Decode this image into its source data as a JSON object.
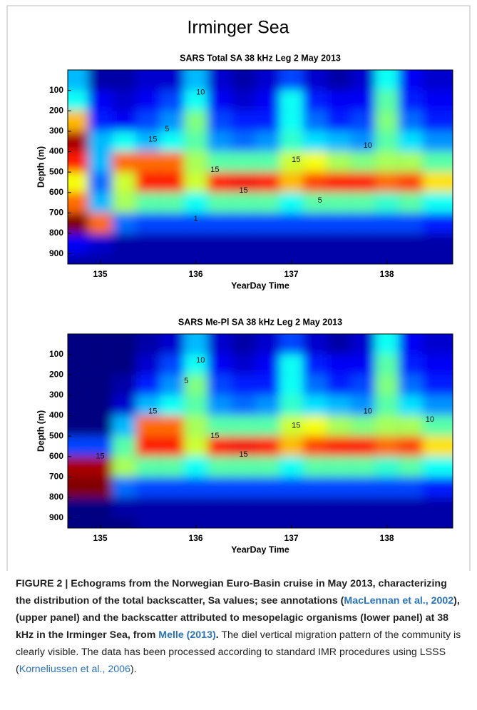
{
  "title": "Irminger Sea",
  "chart_data": [
    {
      "type": "heatmap",
      "title": "SARS Total SA 38 kHz Leg 2 May 2013",
      "xlabel": "YearDay Time",
      "ylabel": "Depth (m)",
      "x": [
        134.75,
        135.0,
        135.25,
        135.5,
        135.75,
        136.0,
        136.25,
        136.5,
        136.75,
        137.0,
        137.25,
        137.5,
        137.75,
        138.0,
        138.25,
        138.5
      ],
      "y": [
        50,
        150,
        250,
        350,
        450,
        550,
        650,
        750,
        850,
        950
      ],
      "values": [
        [
          8,
          1,
          1,
          2,
          2,
          8,
          2,
          1,
          2,
          5,
          2,
          1,
          2,
          10,
          3,
          2
        ],
        [
          10,
          3,
          2,
          3,
          5,
          10,
          3,
          2,
          3,
          10,
          4,
          3,
          3,
          12,
          4,
          3
        ],
        [
          18,
          4,
          3,
          5,
          7,
          13,
          5,
          4,
          4,
          10,
          6,
          4,
          5,
          13,
          6,
          4
        ],
        [
          25,
          8,
          10,
          8,
          10,
          12,
          7,
          6,
          7,
          11,
          9,
          8,
          7,
          12,
          9,
          7
        ],
        [
          22,
          8,
          20,
          20,
          20,
          14,
          12,
          12,
          12,
          15,
          16,
          14,
          13,
          14,
          14,
          12
        ],
        [
          16,
          6,
          15,
          22,
          22,
          15,
          22,
          23,
          22,
          18,
          21,
          22,
          22,
          20,
          21,
          17
        ],
        [
          20,
          8,
          14,
          12,
          12,
          10,
          12,
          12,
          12,
          10,
          12,
          12,
          12,
          11,
          12,
          10
        ],
        [
          26,
          20,
          6,
          5,
          5,
          5,
          5,
          5,
          5,
          5,
          5,
          5,
          5,
          5,
          5,
          4
        ],
        [
          3,
          2,
          1,
          1,
          1,
          1,
          1,
          1,
          1,
          1,
          1,
          1,
          1,
          1,
          1,
          1
        ],
        [
          1,
          1,
          1,
          1,
          1,
          1,
          1,
          1,
          1,
          1,
          1,
          1,
          1,
          1,
          1,
          1
        ]
      ],
      "xlim": [
        134.66,
        138.69
      ],
      "ylim": [
        950,
        0
      ],
      "xticks": [
        135,
        136,
        137,
        138
      ],
      "yticks": [
        100,
        200,
        300,
        400,
        500,
        600,
        700,
        800,
        900
      ],
      "zlim": [
        0,
        26
      ],
      "colormap": "jet",
      "contour_labels": [
        {
          "x": 136.05,
          "y": 110,
          "value": 10
        },
        {
          "x": 135.7,
          "y": 290,
          "value": 5
        },
        {
          "x": 135.55,
          "y": 340,
          "value": 15
        },
        {
          "x": 136.2,
          "y": 490,
          "value": 15
        },
        {
          "x": 136.5,
          "y": 590,
          "value": 15
        },
        {
          "x": 137.05,
          "y": 440,
          "value": 15
        },
        {
          "x": 137.8,
          "y": 370,
          "value": 10
        },
        {
          "x": 137.3,
          "y": 640,
          "value": 5
        },
        {
          "x": 136.0,
          "y": 730,
          "value": 1
        }
      ]
    },
    {
      "type": "heatmap",
      "title": "SARS Me-Pl SA 38 kHz Leg 2 May 2013",
      "xlabel": "YearDay Time",
      "ylabel": "Depth (m)",
      "x": [
        134.75,
        135.0,
        135.25,
        135.5,
        135.75,
        136.0,
        136.25,
        136.5,
        136.75,
        137.0,
        137.25,
        137.5,
        137.75,
        138.0,
        138.25,
        138.5
      ],
      "y": [
        50,
        150,
        250,
        350,
        450,
        550,
        650,
        750,
        850,
        950
      ],
      "values": [
        [
          0,
          0,
          0,
          1,
          2,
          8,
          2,
          1,
          2,
          5,
          2,
          1,
          2,
          10,
          3,
          2
        ],
        [
          0,
          0,
          0,
          2,
          5,
          10,
          3,
          2,
          3,
          10,
          4,
          3,
          3,
          12,
          4,
          3
        ],
        [
          0,
          0,
          1,
          4,
          7,
          13,
          5,
          4,
          4,
          10,
          6,
          4,
          5,
          13,
          6,
          4
        ],
        [
          0,
          0,
          2,
          8,
          10,
          12,
          7,
          6,
          7,
          11,
          9,
          8,
          7,
          12,
          9,
          7
        ],
        [
          0,
          0,
          8,
          20,
          20,
          14,
          12,
          12,
          12,
          15,
          16,
          14,
          13,
          14,
          14,
          12
        ],
        [
          5,
          5,
          12,
          22,
          22,
          15,
          22,
          23,
          22,
          18,
          21,
          22,
          22,
          20,
          21,
          17
        ],
        [
          25,
          25,
          14,
          12,
          12,
          10,
          12,
          12,
          12,
          10,
          12,
          12,
          12,
          11,
          12,
          10
        ],
        [
          26,
          26,
          6,
          5,
          5,
          5,
          5,
          5,
          5,
          5,
          5,
          5,
          5,
          5,
          5,
          4
        ],
        [
          0,
          0,
          1,
          1,
          1,
          1,
          1,
          1,
          1,
          1,
          1,
          1,
          1,
          1,
          1,
          1
        ],
        [
          0,
          0,
          0,
          1,
          1,
          1,
          1,
          1,
          1,
          1,
          1,
          1,
          1,
          1,
          1,
          1
        ]
      ],
      "xlim": [
        134.66,
        138.69
      ],
      "ylim": [
        950,
        0
      ],
      "xticks": [
        135,
        136,
        137,
        138
      ],
      "yticks": [
        100,
        200,
        300,
        400,
        500,
        600,
        700,
        800,
        900
      ],
      "zlim": [
        0,
        26
      ],
      "colormap": "jet",
      "contour_labels": [
        {
          "x": 136.05,
          "y": 130,
          "value": 10
        },
        {
          "x": 135.9,
          "y": 230,
          "value": 5
        },
        {
          "x": 135.55,
          "y": 380,
          "value": 15
        },
        {
          "x": 136.2,
          "y": 500,
          "value": 15
        },
        {
          "x": 136.5,
          "y": 590,
          "value": 15
        },
        {
          "x": 137.05,
          "y": 450,
          "value": 15
        },
        {
          "x": 137.8,
          "y": 380,
          "value": 10
        },
        {
          "x": 135.0,
          "y": 600,
          "value": 15
        },
        {
          "x": 138.45,
          "y": 420,
          "value": 10
        }
      ]
    }
  ],
  "caption": {
    "segments": [
      "FIGURE 2 | Echograms from the Norwegian Euro-Basin cruise in May 2013, characterizing the distribution of the total backscatter, Sa values; see annotations (",
      "MacLennan et al., 2002",
      "), (upper panel) and the backscatter attributed to mesopelagic organisms (lower panel) at 38 kHz in the Irminger Sea, from ",
      "Melle (2013)",
      ".",
      " The diel vertical migration pattern of the community is clearly visible. The data has been processed according to standard IMR procedures using LSSS (",
      "Korneliussen et al., 2006",
      ")."
    ]
  }
}
